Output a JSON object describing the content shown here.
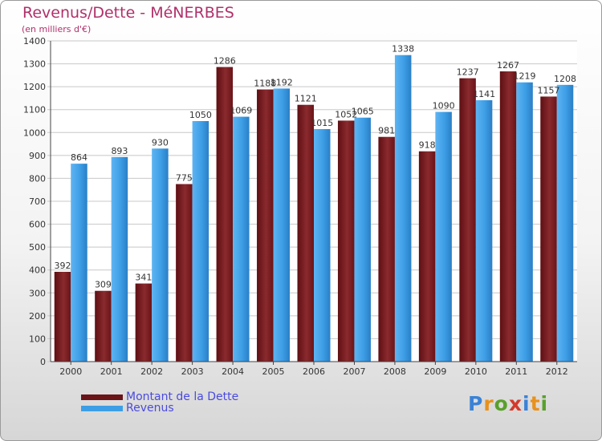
{
  "header": {
    "title": "Revenus/Dette - MéNERBES",
    "subtitle": "(en milliers d'€)"
  },
  "chart_data": {
    "type": "bar",
    "categories": [
      "2000",
      "2001",
      "2002",
      "2003",
      "2004",
      "2005",
      "2006",
      "2007",
      "2008",
      "2009",
      "2010",
      "2011",
      "2012"
    ],
    "series": [
      {
        "name": "Montant de la Dette",
        "values": [
          392,
          309,
          341,
          775,
          1286,
          1188,
          1121,
          1052,
          981,
          918,
          1237,
          1267,
          1157
        ],
        "color": "#7a1a1e"
      },
      {
        "name": "Revenus",
        "values": [
          864,
          893,
          930,
          1050,
          1069,
          1192,
          1015,
          1065,
          1338,
          1090,
          1141,
          1219,
          1208
        ],
        "color": "#3d9ee6"
      }
    ],
    "yticks": [
      0,
      100,
      200,
      300,
      400,
      500,
      600,
      700,
      800,
      900,
      1000,
      1100,
      1200,
      1300,
      1400
    ],
    "ylim": [
      0,
      1400
    ],
    "grid": true,
    "legend_position": "bottom-left"
  },
  "logo": {
    "letters": [
      "P",
      "r",
      "o",
      "x",
      "i",
      "t",
      "i"
    ],
    "colors": [
      "#3b82d6",
      "#e8911c",
      "#5aa02c",
      "#d33a2c",
      "#3b82d6",
      "#e8911c",
      "#5aa02c"
    ]
  }
}
